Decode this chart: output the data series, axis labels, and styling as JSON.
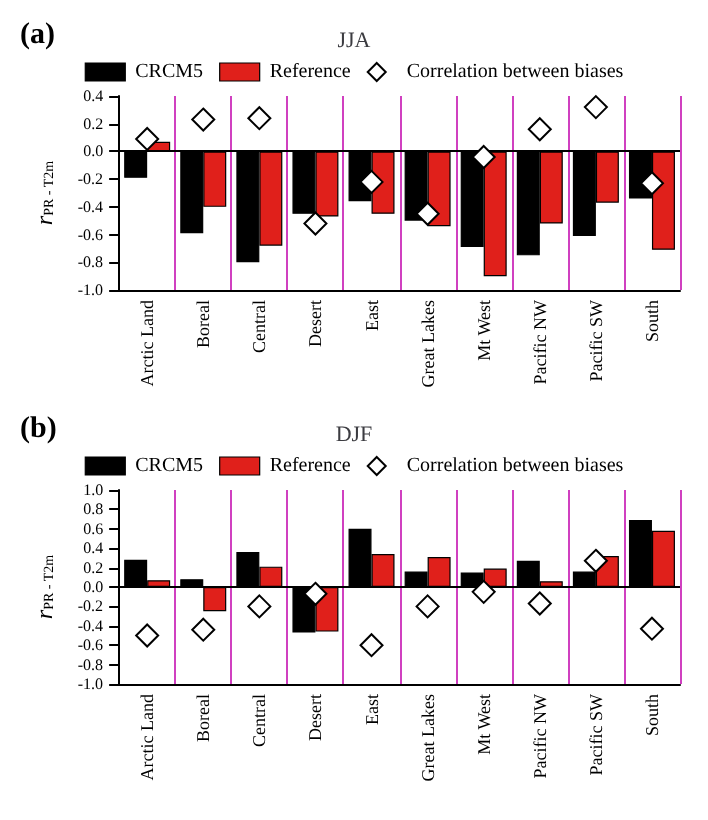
{
  "chart_data": [
    {
      "type": "bar",
      "title": "JJA",
      "annotations": [
        "(a)"
      ],
      "ylabel": "r$_{PR - T2m}$",
      "categories": [
        "Arctic Land",
        "Boreal",
        "Central",
        "Desert",
        "East",
        "Great Lakes",
        "Mt West",
        "Pacific NW",
        "Pacific SW",
        "South"
      ],
      "series": [
        {
          "name": "CRCM5",
          "color": "#000000",
          "values": [
            -0.19,
            -0.59,
            -0.8,
            -0.45,
            -0.36,
            -0.5,
            -0.69,
            -0.75,
            -0.61,
            -0.34
          ]
        },
        {
          "name": "Reference",
          "color": "#e0201b",
          "values": [
            0.07,
            -0.4,
            -0.68,
            -0.47,
            -0.45,
            -0.54,
            -0.9,
            -0.52,
            -0.37,
            -0.71
          ]
        },
        {
          "name": "Correlation between biases",
          "type": "scatter",
          "marker": "diamond",
          "color": "#ffffff",
          "values": [
            0.09,
            0.23,
            0.24,
            -0.52,
            -0.22,
            -0.45,
            -0.04,
            0.16,
            0.32,
            -0.23
          ]
        }
      ],
      "ylim": [
        -1,
        0.4
      ],
      "yticks": [
        {
          "value": -1,
          "label": "-1.0"
        },
        {
          "value": -0.8,
          "label": "-0.8"
        },
        {
          "value": -0.6,
          "label": "-0.6"
        },
        {
          "value": -0.4,
          "label": "-0.4"
        },
        {
          "value": -0.2,
          "label": "-0.2"
        },
        {
          "value": 0,
          "label": "0.0"
        },
        {
          "value": 0.2,
          "label": "0.2"
        },
        {
          "value": 0.4,
          "label": "0.4"
        }
      ],
      "grid": "x",
      "legend": "top"
    },
    {
      "type": "bar",
      "title": "DJF",
      "annotations": [
        "(b)"
      ],
      "ylabel": "r$_{PR - T2m}$",
      "categories": [
        "Arctic Land",
        "Boreal",
        "Central",
        "Desert",
        "East",
        "Great Lakes",
        "Mt West",
        "Pacific NW",
        "Pacific SW",
        "South"
      ],
      "series": [
        {
          "name": "CRCM5",
          "color": "#000000",
          "values": [
            0.28,
            0.08,
            0.36,
            -0.47,
            0.6,
            0.16,
            0.15,
            0.27,
            0.16,
            0.69
          ]
        },
        {
          "name": "Reference",
          "color": "#e0201b",
          "values": [
            0.07,
            -0.25,
            0.21,
            -0.46,
            0.34,
            0.31,
            0.19,
            0.06,
            0.32,
            0.58
          ]
        },
        {
          "name": "Correlation between biases",
          "type": "scatter",
          "marker": "diamond",
          "color": "#ffffff",
          "values": [
            -0.5,
            -0.44,
            -0.2,
            -0.07,
            -0.6,
            -0.2,
            -0.05,
            -0.17,
            0.27,
            -0.43
          ]
        }
      ],
      "ylim": [
        -1,
        1
      ],
      "yticks": [
        {
          "value": -1,
          "label": "-1.0"
        },
        {
          "value": -0.8,
          "label": "-0.8"
        },
        {
          "value": -0.6,
          "label": "-0.6"
        },
        {
          "value": -0.4,
          "label": "-0.4"
        },
        {
          "value": -0.2,
          "label": "-0.2"
        },
        {
          "value": 0,
          "label": "0.0"
        },
        {
          "value": 0.2,
          "label": "0.2"
        },
        {
          "value": 0.4,
          "label": "0.4"
        },
        {
          "value": 0.6,
          "label": "0.6"
        },
        {
          "value": 0.8,
          "label": "0.8"
        },
        {
          "value": 1,
          "label": "1.0"
        }
      ],
      "grid": "x",
      "legend": "top"
    }
  ]
}
